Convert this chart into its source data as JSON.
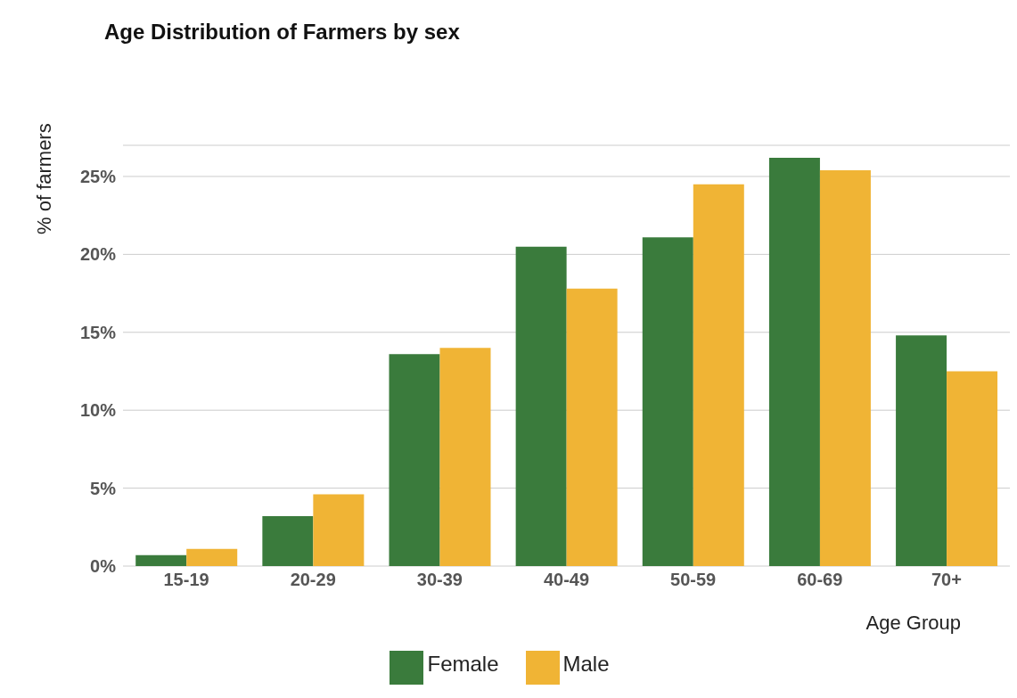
{
  "chart_data": {
    "type": "bar",
    "title": "Age Distribution of Farmers by sex",
    "xlabel": "Age Group",
    "ylabel": "% of farmers",
    "categories": [
      "15-19",
      "20-29",
      "30-39",
      "40-49",
      "50-59",
      "60-69",
      "70+"
    ],
    "series": [
      {
        "name": "Female",
        "color": "#3a7b3c",
        "values": [
          0.7,
          3.2,
          13.6,
          20.5,
          21.1,
          26.2,
          14.8
        ]
      },
      {
        "name": "Male",
        "color": "#f0b435",
        "values": [
          1.1,
          4.6,
          14.0,
          17.8,
          24.5,
          25.4,
          12.5
        ]
      }
    ],
    "ylim": [
      0,
      27
    ],
    "yticks": [
      {
        "value": 0,
        "label": "0%"
      },
      {
        "value": 5,
        "label": "5%"
      },
      {
        "value": 10,
        "label": "10%"
      },
      {
        "value": 15,
        "label": "15%"
      },
      {
        "value": 20,
        "label": "20%"
      },
      {
        "value": 25,
        "label": "25%"
      }
    ],
    "grid": "y",
    "legend": "bottom"
  }
}
